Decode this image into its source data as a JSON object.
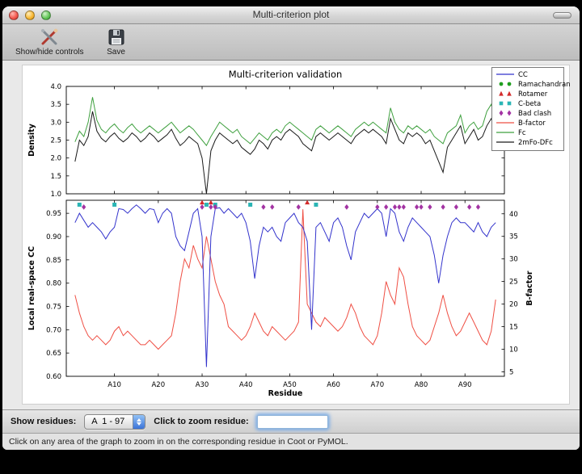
{
  "window": {
    "title": "Multi-criterion plot",
    "toolbar": {
      "items": [
        {
          "label": "Show/hide controls"
        },
        {
          "label": "Save"
        }
      ]
    },
    "controls": {
      "show_residues_label": "Show residues:",
      "residue_range_value": "A  1 - 97",
      "zoom_label": "Click to zoom residue:",
      "zoom_input_value": ""
    },
    "status_text": "Click on any area of the graph to zoom in on the corresponding residue in Coot or PyMOL."
  },
  "chart_data": {
    "type": "line",
    "title": "Multi-criterion validation",
    "xlabel": "Residue",
    "x_range": [
      1,
      97
    ],
    "xticks": [
      10,
      20,
      30,
      40,
      50,
      60,
      70,
      80,
      90
    ],
    "xtick_labels": [
      "A10",
      "A20",
      "A30",
      "A40",
      "A50",
      "A60",
      "A70",
      "A80",
      "A90"
    ],
    "legend": [
      {
        "label": "CC",
        "type": "line",
        "color": "#3333cc"
      },
      {
        "label": "Ramachandran",
        "type": "circle",
        "color": "#1f9e1f"
      },
      {
        "label": "Rotamer",
        "type": "triangle",
        "color": "#d42a2a"
      },
      {
        "label": "C-beta",
        "type": "square",
        "color": "#2ab5b5"
      },
      {
        "label": "Bad clash",
        "type": "diamond",
        "color": "#a333a3"
      },
      {
        "label": "B-factor",
        "type": "line",
        "color": "#ef4f44"
      },
      {
        "label": "Fc",
        "type": "line",
        "color": "#3fa03f"
      },
      {
        "label": "2mFo-DFc",
        "type": "line",
        "color": "#1a1a1a"
      }
    ],
    "subplots": [
      {
        "ylabel": "Density",
        "ylim": [
          1.0,
          4.0
        ],
        "yticks": [
          1.0,
          1.5,
          2.0,
          2.5,
          3.0,
          3.5,
          4.0
        ],
        "ytick_labels": [
          "1.0",
          "1.5",
          "2.0",
          "2.5",
          "3.0",
          "3.5",
          "4.0"
        ],
        "series": [
          {
            "name": "Fc",
            "color": "#3fa03f",
            "axis": "left",
            "values": [
              2.45,
              2.75,
              2.6,
              3.0,
              3.7,
              3.05,
              2.8,
              2.7,
              2.85,
              2.95,
              2.8,
              2.7,
              2.85,
              2.95,
              2.8,
              2.7,
              2.8,
              2.9,
              2.8,
              2.7,
              2.8,
              2.9,
              3.0,
              2.85,
              2.7,
              2.8,
              2.9,
              2.8,
              2.65,
              2.5,
              2.35,
              2.6,
              2.8,
              3.0,
              2.9,
              2.8,
              2.7,
              2.8,
              2.6,
              2.5,
              2.4,
              2.55,
              2.7,
              2.6,
              2.5,
              2.7,
              2.8,
              2.7,
              2.9,
              3.0,
              2.9,
              2.8,
              2.7,
              2.6,
              2.5,
              2.8,
              2.9,
              2.8,
              2.7,
              2.8,
              2.9,
              2.8,
              2.7,
              2.6,
              2.8,
              2.9,
              3.0,
              2.9,
              3.0,
              2.9,
              2.8,
              2.7,
              3.4,
              3.0,
              2.8,
              2.7,
              2.9,
              2.8,
              2.9,
              2.8,
              2.7,
              2.8,
              2.6,
              2.5,
              2.4,
              2.7,
              2.8,
              2.9,
              3.2,
              2.7,
              2.9,
              3.0,
              2.8,
              2.9,
              3.3,
              3.5,
              3.0
            ]
          },
          {
            "name": "2mFo-DFc",
            "color": "#1a1a1a",
            "axis": "left",
            "values": [
              1.9,
              2.5,
              2.35,
              2.6,
              3.3,
              2.75,
              2.55,
              2.45,
              2.6,
              2.7,
              2.55,
              2.45,
              2.55,
              2.7,
              2.6,
              2.45,
              2.55,
              2.7,
              2.6,
              2.45,
              2.55,
              2.65,
              2.8,
              2.55,
              2.35,
              2.45,
              2.6,
              2.5,
              2.4,
              2.0,
              1.0,
              2.2,
              2.5,
              2.7,
              2.6,
              2.5,
              2.4,
              2.5,
              2.3,
              2.2,
              2.1,
              2.25,
              2.5,
              2.4,
              2.25,
              2.5,
              2.6,
              2.5,
              2.7,
              2.8,
              2.7,
              2.6,
              2.4,
              2.3,
              2.2,
              2.6,
              2.7,
              2.6,
              2.5,
              2.6,
              2.7,
              2.6,
              2.5,
              2.4,
              2.6,
              2.7,
              2.8,
              2.7,
              2.8,
              2.7,
              2.6,
              2.4,
              3.1,
              2.8,
              2.5,
              2.4,
              2.7,
              2.6,
              2.7,
              2.6,
              2.4,
              2.5,
              2.2,
              1.9,
              1.6,
              2.3,
              2.5,
              2.7,
              2.9,
              2.4,
              2.6,
              2.8,
              2.5,
              2.6,
              2.9,
              3.1,
              2.7
            ]
          }
        ]
      },
      {
        "ylabel": "Local real-space CC",
        "ylim": [
          0.6,
          0.978
        ],
        "yticks": [
          0.6,
          0.65,
          0.7,
          0.75,
          0.8,
          0.85,
          0.9,
          0.95
        ],
        "ytick_labels": [
          "0.60",
          "0.65",
          "0.70",
          "0.75",
          "0.80",
          "0.85",
          "0.90",
          "0.95"
        ],
        "right_ylabel": "B-factor",
        "right_ylim": [
          4,
          43
        ],
        "right_yticks": [
          5,
          10,
          15,
          20,
          25,
          30,
          35,
          40
        ],
        "right_ytick_labels": [
          "5",
          "10",
          "15",
          "20",
          "25",
          "30",
          "35",
          "40"
        ],
        "series": [
          {
            "name": "B-factor",
            "color": "#ef4f44",
            "axis": "right",
            "values": [
              22,
              18,
              15,
              13,
              12,
              13,
              12,
              11,
              12,
              14,
              15,
              13,
              14,
              13,
              12,
              11,
              11,
              12,
              11,
              10,
              11,
              12,
              13,
              18,
              25,
              30,
              28,
              33,
              30,
              28,
              35,
              30,
              25,
              22,
              20,
              15,
              14,
              13,
              12,
              13,
              15,
              18,
              16,
              14,
              13,
              15,
              14,
              13,
              12,
              13,
              14,
              16,
              41,
              20,
              18,
              16,
              15,
              17,
              16,
              15,
              14,
              15,
              17,
              20,
              18,
              15,
              13,
              12,
              11,
              13,
              18,
              25,
              22,
              20,
              28,
              26,
              20,
              15,
              13,
              12,
              11,
              12,
              15,
              18,
              22,
              18,
              15,
              13,
              14,
              16,
              18,
              16,
              14,
              12,
              11,
              14,
              21
            ]
          },
          {
            "name": "CC",
            "color": "#3333cc",
            "axis": "left",
            "values": [
              0.93,
              0.95,
              0.935,
              0.92,
              0.93,
              0.92,
              0.91,
              0.895,
              0.91,
              0.92,
              0.96,
              0.958,
              0.95,
              0.96,
              0.968,
              0.96,
              0.95,
              0.96,
              0.958,
              0.93,
              0.95,
              0.96,
              0.95,
              0.9,
              0.88,
              0.87,
              0.91,
              0.95,
              0.96,
              0.9,
              0.62,
              0.9,
              0.96,
              0.962,
              0.95,
              0.96,
              0.95,
              0.94,
              0.95,
              0.93,
              0.89,
              0.81,
              0.88,
              0.92,
              0.91,
              0.92,
              0.9,
              0.89,
              0.93,
              0.94,
              0.95,
              0.93,
              0.92,
              0.89,
              0.7,
              0.92,
              0.93,
              0.91,
              0.89,
              0.93,
              0.94,
              0.92,
              0.88,
              0.85,
              0.91,
              0.93,
              0.95,
              0.94,
              0.95,
              0.96,
              0.95,
              0.9,
              0.96,
              0.95,
              0.91,
              0.89,
              0.92,
              0.94,
              0.93,
              0.92,
              0.91,
              0.9,
              0.86,
              0.8,
              0.86,
              0.9,
              0.93,
              0.94,
              0.93,
              0.93,
              0.92,
              0.91,
              0.93,
              0.91,
              0.9,
              0.92,
              0.93
            ]
          }
        ],
        "marker_rows": [
          {
            "name": "Ramachandran",
            "shape": "circle",
            "color": "#1f9e1f",
            "y": 0.9735,
            "residues": []
          },
          {
            "name": "Rotamer",
            "shape": "triangle",
            "color": "#d42a2a",
            "y": 0.9735,
            "residues": [
              30,
              32,
              54
            ]
          },
          {
            "name": "C-beta",
            "shape": "square",
            "color": "#2ab5b5",
            "y": 0.9685,
            "residues": [
              2,
              10,
              31,
              33,
              41,
              56
            ]
          },
          {
            "name": "Bad clash",
            "shape": "diamond",
            "color": "#a333a3",
            "y": 0.9635,
            "residues": [
              3,
              30,
              32,
              33,
              44,
              46,
              52,
              63,
              70,
              72,
              74,
              75,
              76,
              79,
              80,
              82,
              85,
              88,
              91,
              93
            ]
          }
        ]
      }
    ]
  }
}
